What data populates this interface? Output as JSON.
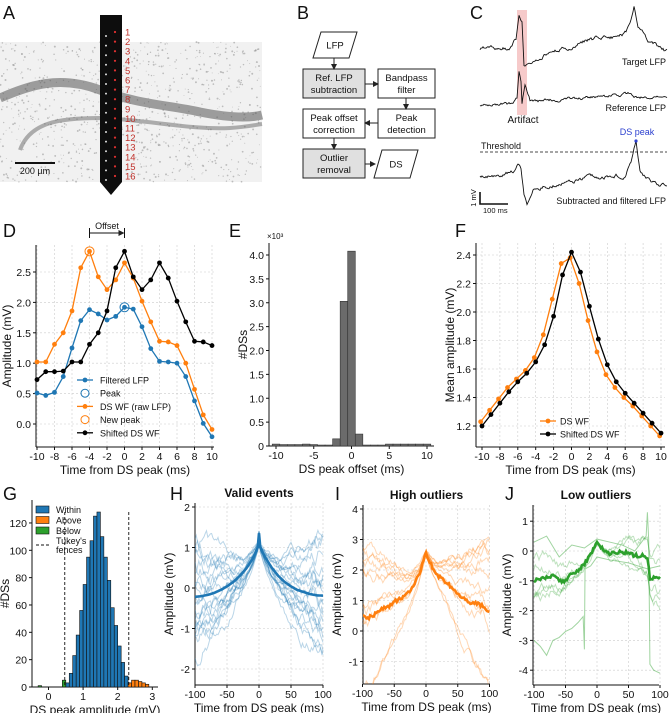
{
  "panel_labels": [
    "A",
    "B",
    "C",
    "D",
    "E",
    "F",
    "G",
    "H",
    "I",
    "J"
  ],
  "panel_a": {
    "scale_bar": "200 µm",
    "channel_numbers": [
      "1",
      "2",
      "3",
      "4",
      "5",
      "6",
      "7",
      "8",
      "9",
      "10",
      "11",
      "12",
      "13",
      "14",
      "15",
      "16"
    ],
    "colors": {
      "channel_number": "#c0302a",
      "probe": "#0d0d0d"
    }
  },
  "panel_b": {
    "input": "LFP",
    "ref_subtraction": [
      "Ref. LFP",
      "subtraction"
    ],
    "bandpass": [
      "Bandpass",
      "filter"
    ],
    "peak_detection": [
      "Peak",
      "detection"
    ],
    "peak_offset": [
      "Peak offset",
      "correction"
    ],
    "outlier_removal": [
      "Outlier",
      "removal"
    ],
    "output": "DS"
  },
  "panel_c": {
    "target": "Target LFP",
    "reference": "Reference LFP",
    "artifact": "Artifact",
    "ds_peak": "DS peak",
    "threshold": "Threshold",
    "subtracted": "Subtracted and filtered LFP",
    "scale_v": "1 mV",
    "scale_t": "100 ms",
    "colors": {
      "artifact_band": "#f6caca",
      "ds_peak": "#2b3fcf"
    }
  },
  "chart_data": [
    {
      "panel": "D",
      "type": "line",
      "xlabel": "Time from DS peak (ms)",
      "ylabel": "Amplitude (mV)",
      "xlim": [
        -10,
        10
      ],
      "ylim": [
        -0.35,
        2.95
      ],
      "xticks": [
        "-10",
        "-8",
        "-6",
        "-4",
        "-2",
        "0",
        "2",
        "4",
        "6",
        "8",
        "10"
      ],
      "yticks": [
        "0.0",
        "0.5",
        "1.0",
        "1.5",
        "2.0",
        "2.5"
      ],
      "x": [
        -10,
        -9,
        -8,
        -7,
        -6,
        -5,
        -4,
        -3,
        -2,
        -1,
        0,
        1,
        2,
        3,
        4,
        5,
        6,
        7,
        8,
        9,
        10
      ],
      "series": [
        {
          "name": "Filtered LFP",
          "color": "#1f77b4",
          "values": [
            0.51,
            0.47,
            0.52,
            0.78,
            1.25,
            1.7,
            1.88,
            1.81,
            1.71,
            1.77,
            1.92,
            1.89,
            1.6,
            1.24,
            1.03,
            1.02,
            1.0,
            0.78,
            0.38,
            0.01,
            -0.21
          ]
        },
        {
          "name": "DS WF (raw LFP)",
          "color": "#ff7f0e",
          "values": [
            1.02,
            1.02,
            1.31,
            1.5,
            1.86,
            2.57,
            2.84,
            2.42,
            2.21,
            2.37,
            2.65,
            2.4,
            2.02,
            1.68,
            1.36,
            1.35,
            1.29,
            1.0,
            0.57,
            0.15,
            -0.09
          ]
        },
        {
          "name": "Shifted DS WF",
          "color": "#000000",
          "values": [
            0.73,
            0.86,
            0.86,
            0.87,
            1.02,
            1.02,
            1.31,
            1.5,
            1.86,
            2.57,
            2.84,
            2.42,
            2.21,
            2.37,
            2.65,
            2.4,
            2.02,
            1.68,
            1.36,
            1.35,
            1.29
          ]
        }
      ],
      "markers": [
        {
          "name": "Peak",
          "color": "#1f77b4",
          "x": 0,
          "y": 1.92
        },
        {
          "name": "New peak",
          "color": "#ff7f0e",
          "x": -4,
          "y": 2.84
        }
      ],
      "legend": [
        "Filtered LFP",
        "Peak",
        "DS WF (raw LFP)",
        "New peak",
        "Shifted DS WF"
      ],
      "legend_position": "lower-center",
      "annotation": {
        "text": "Offset",
        "from": -4,
        "to": 0
      }
    },
    {
      "panel": "E",
      "type": "bar",
      "xlabel": "DS peak offset (ms)",
      "ylabel": "#DSs",
      "multiplier": "×10³",
      "xlim": [
        -11,
        11
      ],
      "ylim": [
        0,
        4.2
      ],
      "xticks": [
        "-10",
        "-5",
        "0",
        "5",
        "10"
      ],
      "yticks": [
        "0",
        "0.5",
        "1.0",
        "1.5",
        "2.0",
        "2.5",
        "3.0",
        "3.5",
        "4.0"
      ],
      "categories": [
        -10,
        -9,
        -8,
        -7,
        -6,
        -5,
        -4,
        -3,
        -2,
        -1,
        0,
        1,
        2,
        3,
        4,
        5,
        6,
        7,
        8,
        9,
        10
      ],
      "values": [
        0.04,
        0.03,
        0.03,
        0.03,
        0.04,
        0.03,
        0.02,
        0.02,
        0.15,
        3.03,
        4.08,
        0.25,
        0.02,
        0.02,
        0.02,
        0.04,
        0.04,
        0.04,
        0.04,
        0.04,
        0.04
      ],
      "color": "#6b6b6b"
    },
    {
      "panel": "F",
      "type": "line",
      "xlabel": "Time from DS peak (ms)",
      "ylabel": "Mean amplitude (mV)",
      "xlim": [
        -10,
        10
      ],
      "ylim": [
        1.12,
        2.48
      ],
      "xticks": [
        "-10",
        "-8",
        "-6",
        "-4",
        "-2",
        "0",
        "2",
        "4",
        "6",
        "8",
        "10"
      ],
      "yticks": [
        "1.2",
        "1.4",
        "1.6",
        "1.8",
        "2.0",
        "2.2",
        "2.4"
      ],
      "x": [
        -10,
        -9,
        -8,
        -7,
        -6,
        -5,
        -4,
        -3,
        -2,
        -1,
        0,
        1,
        2,
        3,
        4,
        5,
        6,
        7,
        8,
        9,
        10
      ],
      "series": [
        {
          "name": "DS WF",
          "color": "#ff7f0e",
          "values": [
            1.23,
            1.31,
            1.39,
            1.47,
            1.53,
            1.59,
            1.68,
            1.84,
            2.09,
            2.34,
            2.38,
            2.2,
            1.94,
            1.72,
            1.56,
            1.47,
            1.4,
            1.34,
            1.27,
            1.2,
            1.13
          ]
        },
        {
          "name": "Shifted DS WF",
          "color": "#000000",
          "values": [
            1.2,
            1.28,
            1.36,
            1.44,
            1.51,
            1.57,
            1.65,
            1.77,
            1.97,
            2.26,
            2.42,
            2.28,
            2.04,
            1.81,
            1.63,
            1.51,
            1.43,
            1.36,
            1.29,
            1.22,
            1.15
          ]
        }
      ],
      "legend_position": "lower-center"
    },
    {
      "panel": "G",
      "type": "bar",
      "xlabel": "DS peak amplitude (mV)",
      "ylabel": "#DSs",
      "xlim": [
        -0.45,
        3.2
      ],
      "ylim": [
        0,
        135
      ],
      "xticks": [
        "0",
        "1",
        "2",
        "3"
      ],
      "yticks": [
        "0",
        "20",
        "40",
        "60",
        "80",
        "100",
        "120"
      ],
      "bin_width": 0.1,
      "groups": [
        {
          "name": "Within",
          "color": "#1f77b4",
          "bins": [
            0.55,
            0.65,
            0.75,
            0.85,
            0.95,
            1.05,
            1.15,
            1.25,
            1.35,
            1.45,
            1.55,
            1.65,
            1.75,
            1.85,
            1.95,
            2.05,
            2.15,
            2.25
          ],
          "counts": [
            3,
            10,
            23,
            38,
            56,
            75,
            95,
            107,
            125,
            128,
            110,
            95,
            78,
            58,
            45,
            30,
            18,
            8
          ]
        },
        {
          "name": "Above",
          "color": "#ff7f0e",
          "bins": [
            2.35,
            2.45,
            2.55,
            2.65,
            2.75,
            2.85
          ],
          "counts": [
            3,
            5,
            5,
            4,
            3,
            2
          ]
        },
        {
          "name": "Below",
          "color": "#2ca02c",
          "bins": [
            -0.25,
            0.45
          ],
          "counts": [
            1,
            5
          ]
        }
      ],
      "fences": {
        "label": [
          "Tukey's",
          "fences"
        ],
        "values": [
          0.47,
          2.32
        ]
      },
      "legend_position": "top-left"
    },
    {
      "panel": "H",
      "type": "line",
      "title": "Valid events",
      "xlabel": "Time from DS peak (ms)",
      "ylabel": "Amplitude (mV)",
      "xlim": [
        -100,
        100
      ],
      "ylim": [
        -2.4,
        2.1
      ],
      "xticks": [
        "-100",
        "-50",
        "0",
        "50",
        "100"
      ],
      "yticks": [
        "-2",
        "-1",
        "0",
        "1",
        "2"
      ],
      "color": "#1f77b4",
      "individual_traces": 20,
      "spread": 1.6,
      "mean": {
        "x": [
          -100,
          -90,
          -80,
          -70,
          -60,
          -50,
          -40,
          -30,
          -20,
          -10,
          -2,
          0,
          2,
          10,
          20,
          30,
          40,
          50,
          60,
          70,
          80,
          90,
          100
        ],
        "y": [
          -0.22,
          -0.2,
          -0.17,
          -0.12,
          -0.05,
          0.04,
          0.15,
          0.3,
          0.48,
          0.72,
          1.0,
          1.35,
          1.0,
          0.75,
          0.5,
          0.3,
          0.15,
          0.04,
          -0.05,
          -0.1,
          -0.15,
          -0.18,
          -0.19
        ]
      }
    },
    {
      "panel": "I",
      "type": "line",
      "title": "High outliers",
      "xlabel": "Time from DS peak (ms)",
      "ylabel": "Amplitude (mV)",
      "xlim": [
        -100,
        100
      ],
      "ylim": [
        -1.75,
        4.1
      ],
      "xticks": [
        "-100",
        "-50",
        "0",
        "50",
        "100"
      ],
      "yticks": [
        "-1",
        "0",
        "1",
        "2",
        "3",
        "4"
      ],
      "color": "#ff7f0e",
      "individual_traces": 12,
      "spread": 2.6,
      "mean": {
        "x": [
          -100,
          -90,
          -80,
          -70,
          -60,
          -50,
          -40,
          -30,
          -20,
          -10,
          0,
          10,
          20,
          30,
          40,
          50,
          60,
          70,
          80,
          90,
          100
        ],
        "y": [
          0.45,
          0.45,
          0.55,
          0.7,
          0.8,
          0.95,
          1.05,
          1.2,
          1.5,
          1.9,
          2.55,
          2.1,
          1.8,
          1.6,
          1.45,
          1.2,
          1.05,
          0.95,
          0.9,
          0.8,
          0.65
        ]
      }
    },
    {
      "panel": "J",
      "type": "line",
      "title": "Low outliers",
      "xlabel": "Time from DS peak (ms)",
      "ylabel": "Amplitude (mV)",
      "xlim": [
        -100,
        100
      ],
      "ylim": [
        -4.4,
        1.45
      ],
      "xticks": [
        "-100",
        "-50",
        "0",
        "50",
        "100"
      ],
      "yticks": [
        "-4",
        "-3",
        "-2",
        "-1",
        "0",
        "1"
      ],
      "color": "#2ca02c",
      "individual_traces": 5,
      "spread": 1.0,
      "mean": {
        "x": [
          -100,
          -90,
          -80,
          -70,
          -60,
          -50,
          -40,
          -30,
          -20,
          -10,
          0,
          10,
          20,
          30,
          40,
          50,
          60,
          70,
          80,
          84,
          90,
          100
        ],
        "y": [
          -1.0,
          -0.95,
          -0.9,
          -0.85,
          -1.0,
          -1.0,
          -0.75,
          -0.65,
          -0.45,
          -0.1,
          0.3,
          0.05,
          -0.1,
          -0.05,
          -0.05,
          -0.05,
          -0.15,
          -0.15,
          -0.2,
          -0.9,
          -0.9,
          -0.9
        ]
      },
      "outlier_traces": [
        {
          "x": [
            -100,
            -90,
            -80,
            -70,
            -60,
            -50,
            -40,
            -30,
            -22,
            -20,
            -19,
            -10,
            0,
            20,
            50,
            80,
            100
          ],
          "y": [
            -3.0,
            -3.2,
            -3.5,
            -3.0,
            -2.9,
            -2.7,
            -2.6,
            -2.4,
            -2.2,
            -3.3,
            -0.6,
            -0.5,
            -0.2,
            -0.3,
            -0.4,
            -0.6,
            -0.5
          ]
        },
        {
          "x": [
            -100,
            -80,
            -60,
            -40,
            -20,
            0,
            20,
            40,
            60,
            78,
            80,
            82,
            84,
            90,
            100
          ],
          "y": [
            0.3,
            0.5,
            -0.2,
            0.2,
            0.1,
            0.4,
            0.3,
            0.2,
            0.0,
            0.5,
            1.3,
            0.4,
            -3.8,
            -4.0,
            -4.1
          ]
        }
      ]
    }
  ]
}
